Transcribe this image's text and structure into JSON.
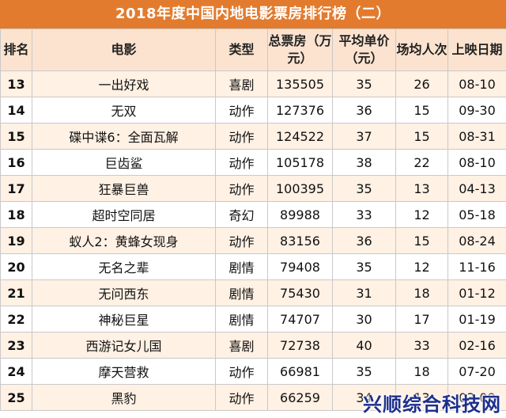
{
  "title": "2018年度中国内地电影票房排行榜（二）",
  "columns": [
    "排名",
    "电影",
    "类型",
    "总票房（万元）",
    "平均单价（元）",
    "场均人次",
    "上映日期"
  ],
  "rows": [
    [
      "13",
      "一出好戏",
      "喜剧",
      "135505",
      "35",
      "26",
      "08-10"
    ],
    [
      "14",
      "无双",
      "动作",
      "127376",
      "36",
      "15",
      "09-30"
    ],
    [
      "15",
      "碟中谍6：全面瓦解",
      "动作",
      "124522",
      "37",
      "15",
      "08-31"
    ],
    [
      "16",
      "巨齿鲨",
      "动作",
      "105178",
      "38",
      "22",
      "08-10"
    ],
    [
      "17",
      "狂暴巨兽",
      "动作",
      "100395",
      "35",
      "13",
      "04-13"
    ],
    [
      "18",
      "超时空同居",
      "奇幻",
      "89988",
      "33",
      "12",
      "05-18"
    ],
    [
      "19",
      "蚁人2：黄蜂女现身",
      "动作",
      "83156",
      "36",
      "15",
      "08-24"
    ],
    [
      "20",
      "无名之辈",
      "剧情",
      "79408",
      "35",
      "12",
      "11-16"
    ],
    [
      "21",
      "无问西东",
      "剧情",
      "75430",
      "31",
      "18",
      "01-12"
    ],
    [
      "22",
      "神秘巨星",
      "剧情",
      "74707",
      "30",
      "17",
      "01-19"
    ],
    [
      "23",
      "西游记女儿国",
      "喜剧",
      "72738",
      "40",
      "33",
      "02-16"
    ],
    [
      "24",
      "摩天营救",
      "动作",
      "66981",
      "35",
      "18",
      "07-20"
    ],
    [
      "25",
      "黑豹",
      "动作",
      "66259",
      "34",
      "13",
      "03-09"
    ]
  ],
  "watermark": "兴顺综合科技网",
  "colors": {
    "title_bg": "#e37b2e",
    "header_bg": "#fbe3cf",
    "stripe": "#fff1e4"
  }
}
